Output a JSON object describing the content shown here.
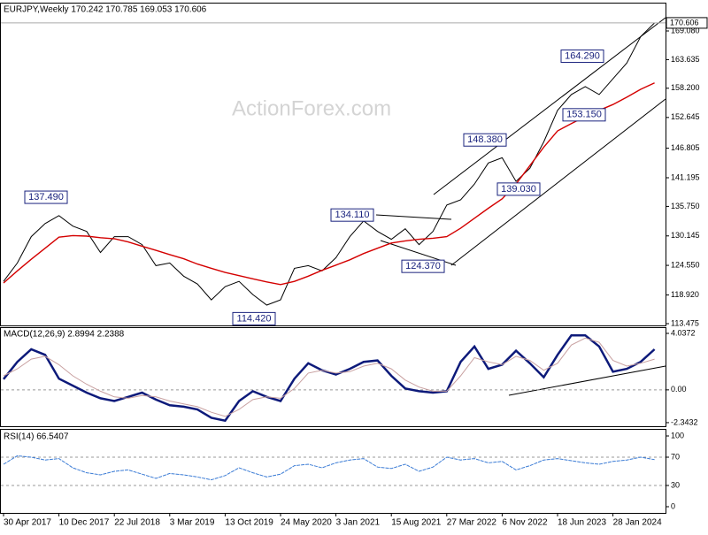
{
  "chart_data": [
    {
      "type": "line",
      "title": "EURJPY,Weekly  170.242 170.785 169.053 170.606",
      "watermark": "ActionForex.com",
      "categories": [
        "30 Apr 2017",
        null,
        null,
        null,
        "10 Dec 2017",
        null,
        null,
        null,
        "22 Jul 2018",
        null,
        null,
        null,
        "3 Mar 2019",
        null,
        null,
        null,
        "13 Oct 2019",
        null,
        null,
        null,
        "24 May 2020",
        null,
        null,
        null,
        "3 Jan 2021",
        null,
        null,
        null,
        "15 Aug 2021",
        null,
        null,
        null,
        "27 Mar 2022",
        null,
        null,
        null,
        "6 Nov 2022",
        null,
        null,
        null,
        "18 Jun 2023",
        null,
        null,
        null,
        "28 Jan 2024",
        null,
        null,
        null
      ],
      "series": [
        {
          "color": "#000000",
          "values": [
            121.5,
            125,
            130,
            132.5,
            134,
            132,
            131,
            127,
            130,
            130,
            128.5,
            124.5,
            125,
            122.5,
            121,
            118,
            120.5,
            121.5,
            119,
            117,
            118,
            124,
            124.5,
            123.5,
            126,
            130,
            133,
            131,
            129.5,
            131.5,
            128.5,
            131,
            136,
            137,
            140,
            144,
            145,
            140.5,
            143,
            148,
            154,
            157,
            158.5,
            157,
            160,
            163,
            168,
            170.606
          ]
        },
        {
          "color": "#d40000",
          "values": [
            121.2,
            123.5,
            125.7,
            127.8,
            129.9,
            130.2,
            130.1,
            129.8,
            129.6,
            129,
            128.2,
            127.4,
            126.6,
            125.8,
            124.8,
            124,
            123.2,
            122.6,
            122,
            121.4,
            120.9,
            121.5,
            122.5,
            123.6,
            124.6,
            125.6,
            126.8,
            127.8,
            128.8,
            129.2,
            129.5,
            129.7,
            130,
            131.6,
            133.5,
            135.4,
            137.2,
            140,
            143.5,
            147,
            150.1,
            151.5,
            152.8,
            154,
            155.1,
            156.5,
            158,
            159.2
          ]
        }
      ],
      "annotations": [
        {
          "value": 137.49,
          "label": "137.490"
        },
        {
          "value": 114.42,
          "label": "114.420"
        },
        {
          "value": 134.11,
          "label": "134.110"
        },
        {
          "value": 124.37,
          "label": "124.370"
        },
        {
          "value": 148.38,
          "label": "148.380"
        },
        {
          "value": 139.03,
          "label": "139.030"
        },
        {
          "value": 164.29,
          "label": "164.290"
        },
        {
          "value": 153.15,
          "label": "153.150"
        },
        170.606
      ],
      "ylim": [
        113.14,
        174.29
      ],
      "yticks": [
        {
          "value": 169.08,
          "label": "169.080"
        },
        163.635,
        {
          "value": 158.2,
          "label": "158.200"
        },
        152.645,
        146.805,
        141.195,
        {
          "value": 135.75,
          "label": "135.750"
        },
        130.145,
        {
          "value": 124.55,
          "label": "124.550"
        },
        {
          "value": 118.92,
          "label": "118.920"
        },
        113.475
      ]
    },
    {
      "type": "line",
      "title": "MACD(12,26,9) 2.8994 2.2388",
      "series": [
        {
          "color": "#0d1a7a",
          "values": [
            0.76,
            2,
            2.9,
            2.5,
            0.8,
            0.3,
            -0.2,
            -0.6,
            -0.8,
            -0.5,
            -0.2,
            -0.7,
            -1.1,
            -1.2,
            -1.4,
            -2,
            -2.2,
            -0.8,
            -0.1,
            -0.5,
            -0.8,
            0.8,
            1.9,
            1.4,
            1.1,
            1.5,
            2,
            2.1,
            1,
            0.1,
            -0.1,
            -0.2,
            -0.1,
            2,
            3.1,
            1.5,
            1.8,
            2.8,
            1.9,
            0.9,
            2.5,
            3.9,
            3.9,
            3.1,
            1.3,
            1.5,
            2,
            2.9
          ]
        },
        {
          "color": "#c8a0a0",
          "values": [
            1,
            1.5,
            2.2,
            2.4,
            1.8,
            1,
            0.4,
            -0.1,
            -0.5,
            -0.6,
            -0.4,
            -0.5,
            -0.8,
            -1,
            -1.2,
            -1.6,
            -1.9,
            -1.4,
            -0.7,
            -0.5,
            -0.6,
            0.1,
            1.2,
            1.4,
            1.2,
            1.3,
            1.7,
            1.9,
            1.5,
            0.7,
            0.2,
            -0.1,
            -0.1,
            1,
            2.3,
            2,
            1.8,
            2.4,
            2.1,
            1.4,
            1.9,
            3.2,
            3.7,
            3.4,
            2.1,
            1.7,
            1.9,
            2.2
          ]
        }
      ],
      "ylim": [
        -2.6,
        4.416
      ],
      "yticks": [
        4.0372,
        {
          "value": 0,
          "label": "0.00"
        },
        -2.3432
      ]
    },
    {
      "type": "line",
      "title": "RSI(14) 66.5407",
      "series": [
        {
          "color": "#3a7bd5",
          "values": [
            60,
            72,
            70,
            66,
            68,
            55,
            48,
            45,
            50,
            52,
            46,
            40,
            47,
            45,
            42,
            38,
            44,
            55,
            48,
            42,
            46,
            58,
            60,
            55,
            62,
            66,
            68,
            56,
            54,
            60,
            50,
            56,
            70,
            66,
            68,
            62,
            64,
            52,
            58,
            66,
            68,
            65,
            62,
            60,
            64,
            66,
            70,
            66.5407
          ]
        }
      ],
      "levels": [
        70,
        30
      ],
      "ylim": [
        -8.75,
        108.75
      ],
      "yticks": [
        100,
        70,
        30,
        0
      ]
    }
  ]
}
